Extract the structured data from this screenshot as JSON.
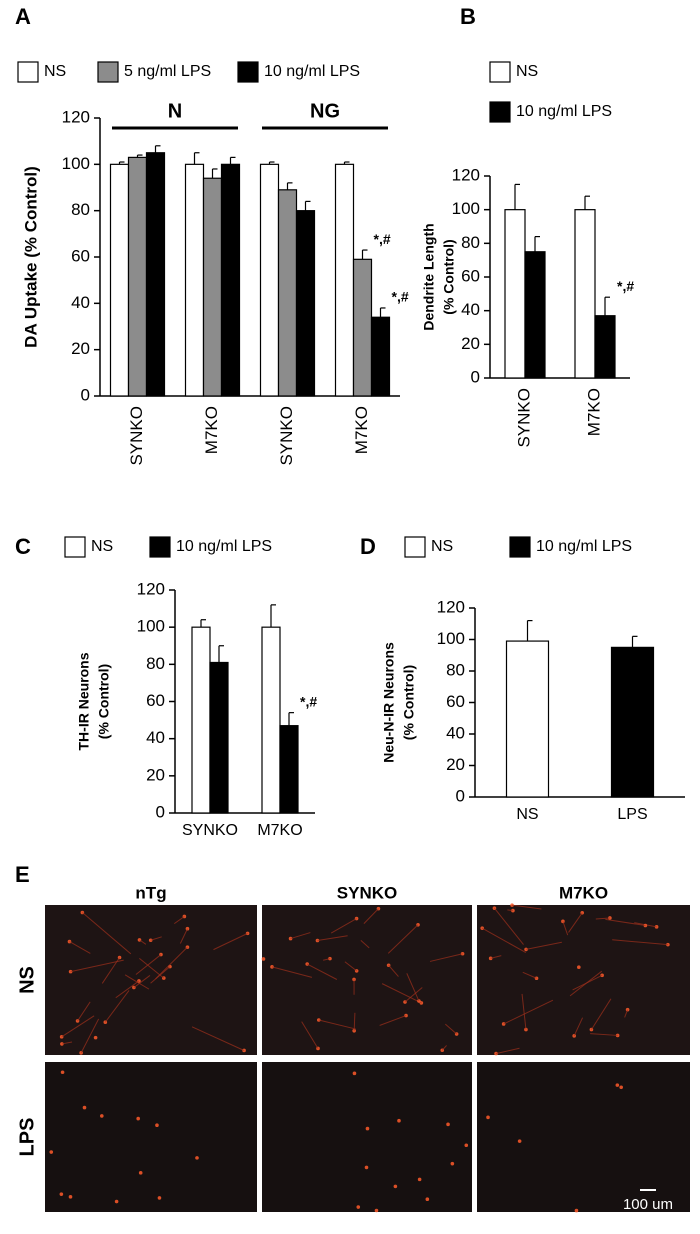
{
  "chart_data": [
    {
      "type": "bar",
      "panel": "A",
      "ylabel": [
        "DA Uptake (% Control)"
      ],
      "categories": [
        "SYNKO",
        "M7KO",
        "SYNKO",
        "M7KO"
      ],
      "groups": [
        "N",
        "NG"
      ],
      "series": [
        {
          "name": "NS",
          "color": "#ffffff",
          "values": [
            100,
            100,
            100,
            100
          ],
          "errors": [
            1,
            5,
            1,
            1
          ],
          "markers": [
            null,
            null,
            null,
            null
          ]
        },
        {
          "name": "5 ng/ml LPS",
          "color": "#8c8c8c",
          "values": [
            103,
            94,
            89,
            59
          ],
          "errors": [
            1,
            4,
            3,
            4
          ],
          "markers": [
            null,
            null,
            null,
            "*,#"
          ]
        },
        {
          "name": "10 ng/ml LPS",
          "color": "#000000",
          "values": [
            105,
            100,
            80,
            34
          ],
          "errors": [
            3,
            3,
            4,
            4
          ],
          "markers": [
            null,
            null,
            null,
            "*,#"
          ]
        }
      ],
      "ylim": [
        0,
        120
      ],
      "yticks": [
        0,
        20,
        40,
        60,
        80,
        100,
        120
      ]
    },
    {
      "type": "bar",
      "panel": "B",
      "ylabel": [
        "Dendrite Length",
        "(% Control)"
      ],
      "categories": [
        "SYNKO",
        "M7KO"
      ],
      "series": [
        {
          "name": "NS",
          "color": "#ffffff",
          "values": [
            100,
            100
          ],
          "errors": [
            15,
            8
          ],
          "markers": [
            null,
            null
          ]
        },
        {
          "name": "10 ng/ml LPS",
          "color": "#000000",
          "values": [
            75,
            37
          ],
          "errors": [
            9,
            11
          ],
          "markers": [
            null,
            "*,#"
          ]
        }
      ],
      "ylim": [
        0,
        120
      ],
      "yticks": [
        0,
        20,
        40,
        60,
        80,
        100,
        120
      ]
    },
    {
      "type": "bar",
      "panel": "C",
      "ylabel": [
        "TH-IR Neurons",
        "(% Control)"
      ],
      "categories": [
        "SYNKO",
        "M7KO"
      ],
      "series": [
        {
          "name": "NS",
          "color": "#ffffff",
          "values": [
            100,
            100
          ],
          "errors": [
            4,
            12
          ],
          "markers": [
            null,
            null
          ]
        },
        {
          "name": "10 ng/ml LPS",
          "color": "#000000",
          "values": [
            81,
            47
          ],
          "errors": [
            9,
            7
          ],
          "markers": [
            null,
            "*,#"
          ]
        }
      ],
      "ylim": [
        0,
        120
      ],
      "yticks": [
        0,
        20,
        40,
        60,
        80,
        100,
        120
      ]
    },
    {
      "type": "bar",
      "panel": "D",
      "ylabel": [
        "Neu-N-IR Neurons",
        "(% Control)"
      ],
      "categories": [
        "NS",
        "LPS"
      ],
      "series": [
        {
          "name": "NS",
          "color": "#ffffff",
          "values": [
            99,
            null
          ],
          "errors": [
            13,
            null
          ],
          "markers": [
            null,
            null
          ]
        },
        {
          "name": "10 ng/ml LPS",
          "color": "#000000",
          "values": [
            null,
            95
          ],
          "errors": [
            null,
            7
          ],
          "markers": [
            null,
            null
          ]
        }
      ],
      "ylim": [
        0,
        120
      ],
      "yticks": [
        0,
        20,
        40,
        60,
        80,
        100,
        120
      ]
    }
  ],
  "image_panel": {
    "panel": "E",
    "columns": [
      "nTg",
      "SYNKO",
      "M7KO"
    ],
    "rows": [
      "NS",
      "LPS"
    ],
    "scale_bar": "100 um"
  }
}
